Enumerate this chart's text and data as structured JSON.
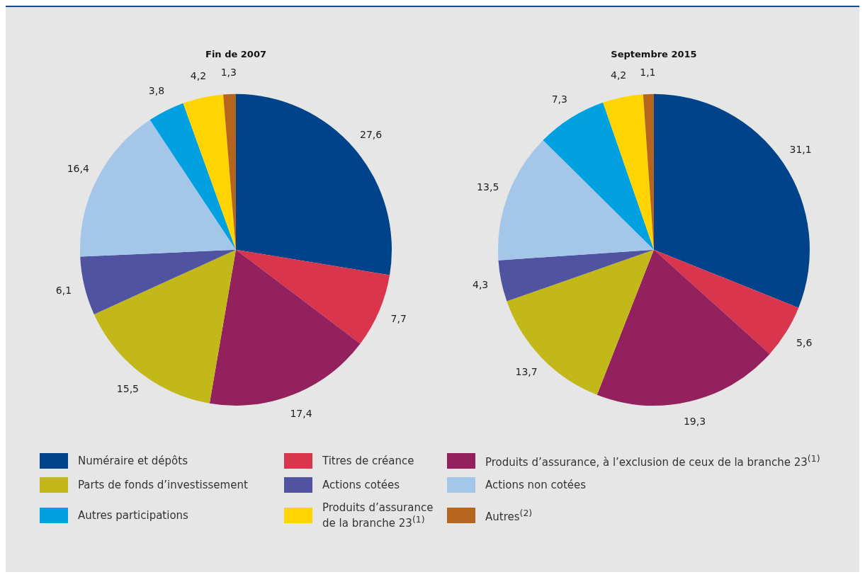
{
  "chart_data": [
    {
      "type": "pie",
      "title": "Fin de 2007",
      "legend": "bottom",
      "categories": [
        "Numéraire et dépôts",
        "Titres de créance",
        "Produits d’assurance, à l’exclusion de ceux de la branche 23$^{(1)}$",
        "Parts de fonds d’investissement",
        "Actions cotées",
        "Actions non cotées",
        "Autres participations",
        "Produits d’assurance de la branche 23$^{(1)}$",
        "Autres$^{(2)}$"
      ],
      "values": [
        27.6,
        7.7,
        17.4,
        15.5,
        6.1,
        16.4,
        3.8,
        4.2,
        1.3
      ],
      "value_labels": [
        "27,6",
        "7,7",
        "17,4",
        "15,5",
        "6,1",
        "16,4",
        "3,8",
        "4,2",
        "1,3"
      ],
      "colors": [
        "#00438a",
        "#d9364e",
        "#93215e",
        "#c3b81a",
        "#5053a0",
        "#a4c6e9",
        "#00a0e1",
        "#ffd400",
        "#b5651d"
      ]
    },
    {
      "type": "pie",
      "title": "Septembre 2015",
      "categories": [
        null,
        null,
        null,
        null,
        null,
        null,
        null,
        null,
        null
      ],
      "values": [
        31.1,
        5.6,
        19.3,
        13.7,
        4.3,
        13.5,
        7.3,
        4.2,
        1.1
      ],
      "value_labels": [
        "31,1",
        "5,6",
        "19,3",
        "13,7",
        "4,3",
        "13,5",
        "7,3",
        "4,2",
        "1,1"
      ],
      "colors": [
        "#00438a",
        "#d9364e",
        "#93215e",
        "#c3b81a",
        "#5053a0",
        "#a4c6e9",
        "#00a0e1",
        "#ffd400",
        "#b5651d"
      ]
    }
  ]
}
